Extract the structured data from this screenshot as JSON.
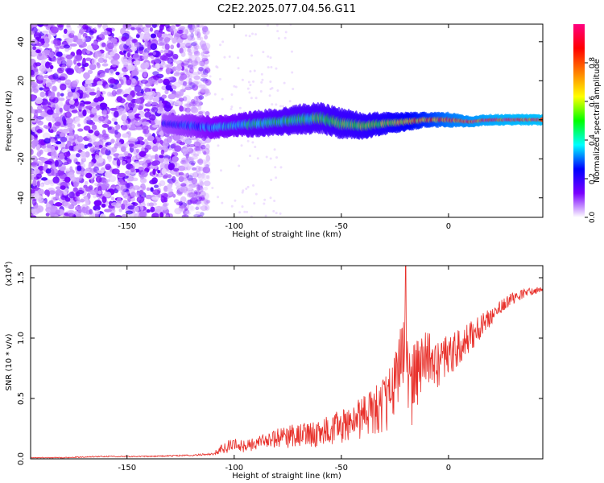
{
  "title": "C2E2.2025.077.04.56.G11",
  "colorbar": {
    "label": "Normalized spectral amplitude",
    "ticks": [
      0.0,
      0.2,
      0.4,
      0.6,
      0.8
    ],
    "tick_labels": [
      "0.0",
      "0.2",
      "0.4",
      "0.6",
      "0.8"
    ],
    "colormap": [
      "#ffffff",
      "#7a00ff",
      "#0000ff",
      "#00ffff",
      "#00ff00",
      "#ffff00",
      "#ff8000",
      "#ff0000",
      "#ff0080"
    ]
  },
  "chart_data": [
    {
      "type": "heatmap",
      "xlabel": "Height of straight line (km)",
      "ylabel": "Frequency (Hz)",
      "xlim": [
        -195,
        44
      ],
      "ylim": [
        -50,
        49
      ],
      "xticks": [
        -150,
        -100,
        -50,
        0
      ],
      "xtick_labels": [
        "-150",
        "-100",
        "-50",
        "0"
      ],
      "yticks": [
        -40,
        -20,
        0,
        20,
        40
      ],
      "ytick_labels": [
        "-40",
        "-20",
        "0",
        "20",
        "40"
      ],
      "noise_region_x": [
        -195,
        -112
      ],
      "ridge": {
        "frequency_hz": 0,
        "x_start": -133,
        "x_end": 44,
        "points": [
          {
            "x": -133,
            "y": -2,
            "halfwidth": 2.5,
            "amp": 0.25
          },
          {
            "x": -120,
            "y": -3,
            "halfwidth": 3.0,
            "amp": 0.3
          },
          {
            "x": -110,
            "y": -4,
            "halfwidth": 3.0,
            "amp": 0.35
          },
          {
            "x": -100,
            "y": -3,
            "halfwidth": 3.0,
            "amp": 0.4
          },
          {
            "x": -90,
            "y": -2,
            "halfwidth": 3.5,
            "amp": 0.45
          },
          {
            "x": -80,
            "y": -1,
            "halfwidth": 3.5,
            "amp": 0.48
          },
          {
            "x": -70,
            "y": 0,
            "halfwidth": 4.0,
            "amp": 0.5
          },
          {
            "x": -60,
            "y": 1,
            "halfwidth": 4.0,
            "amp": 0.52
          },
          {
            "x": -50,
            "y": -2,
            "halfwidth": 4.0,
            "amp": 0.55
          },
          {
            "x": -40,
            "y": -3,
            "halfwidth": 3.5,
            "amp": 0.58
          },
          {
            "x": -30,
            "y": -2,
            "halfwidth": 3.0,
            "amp": 0.62
          },
          {
            "x": -20,
            "y": -1,
            "halfwidth": 2.5,
            "amp": 0.7
          },
          {
            "x": -10,
            "y": 0,
            "halfwidth": 2.0,
            "amp": 0.78
          },
          {
            "x": 0,
            "y": 0,
            "halfwidth": 2.0,
            "amp": 0.88
          },
          {
            "x": 10,
            "y": -1,
            "halfwidth": 1.5,
            "amp": 0.92
          },
          {
            "x": 20,
            "y": 0,
            "halfwidth": 1.5,
            "amp": 0.95
          },
          {
            "x": 30,
            "y": 0,
            "halfwidth": 1.5,
            "amp": 0.97
          },
          {
            "x": 44,
            "y": 0,
            "halfwidth": 1.5,
            "amp": 0.98
          }
        ]
      }
    },
    {
      "type": "line",
      "xlabel": "Height of straight line (km)",
      "ylabel": "SNR (10 * v/v)",
      "scale_label": "(x10",
      "scale_exponent": "4",
      "scale_suffix": ")",
      "xlim": [
        -195,
        44
      ],
      "ylim": [
        0,
        1.6
      ],
      "xticks": [
        -150,
        -100,
        -50,
        0
      ],
      "xtick_labels": [
        "-150",
        "-100",
        "-50",
        "0"
      ],
      "yticks": [
        0.0,
        0.5,
        1.0,
        1.5
      ],
      "ytick_labels": [
        "0.0",
        "0.5",
        "1.0",
        "1.5"
      ],
      "series": [
        {
          "color": "#e8302a",
          "x": [
            -195,
            -180,
            -160,
            -140,
            -120,
            -110,
            -104,
            -100,
            -95,
            -90,
            -85,
            -80,
            -75,
            -70,
            -65,
            -60,
            -55,
            -50,
            -45,
            -40,
            -35,
            -30,
            -25,
            -22,
            -20,
            -18,
            -15,
            -10,
            -5,
            0,
            5,
            10,
            15,
            20,
            25,
            30,
            35,
            40,
            44
          ],
          "y": [
            0.01,
            0.01,
            0.02,
            0.02,
            0.03,
            0.04,
            0.09,
            0.12,
            0.1,
            0.13,
            0.15,
            0.17,
            0.18,
            0.2,
            0.2,
            0.21,
            0.24,
            0.27,
            0.3,
            0.35,
            0.38,
            0.45,
            0.6,
            0.9,
            1.1,
            0.55,
            0.7,
            0.85,
            0.78,
            0.85,
            0.92,
            1.0,
            1.1,
            1.18,
            1.28,
            1.33,
            1.37,
            1.39,
            1.4
          ],
          "fluctuation": [
            0.003,
            0.004,
            0.005,
            0.005,
            0.006,
            0.008,
            0.06,
            0.05,
            0.05,
            0.06,
            0.07,
            0.08,
            0.09,
            0.1,
            0.11,
            0.12,
            0.13,
            0.15,
            0.16,
            0.18,
            0.2,
            0.24,
            0.3,
            0.35,
            0.4,
            0.35,
            0.28,
            0.22,
            0.2,
            0.18,
            0.15,
            0.13,
            0.1,
            0.08,
            0.06,
            0.05,
            0.04,
            0.03,
            0.03
          ],
          "peak": {
            "x": -20,
            "y": 1.6
          }
        }
      ]
    }
  ]
}
